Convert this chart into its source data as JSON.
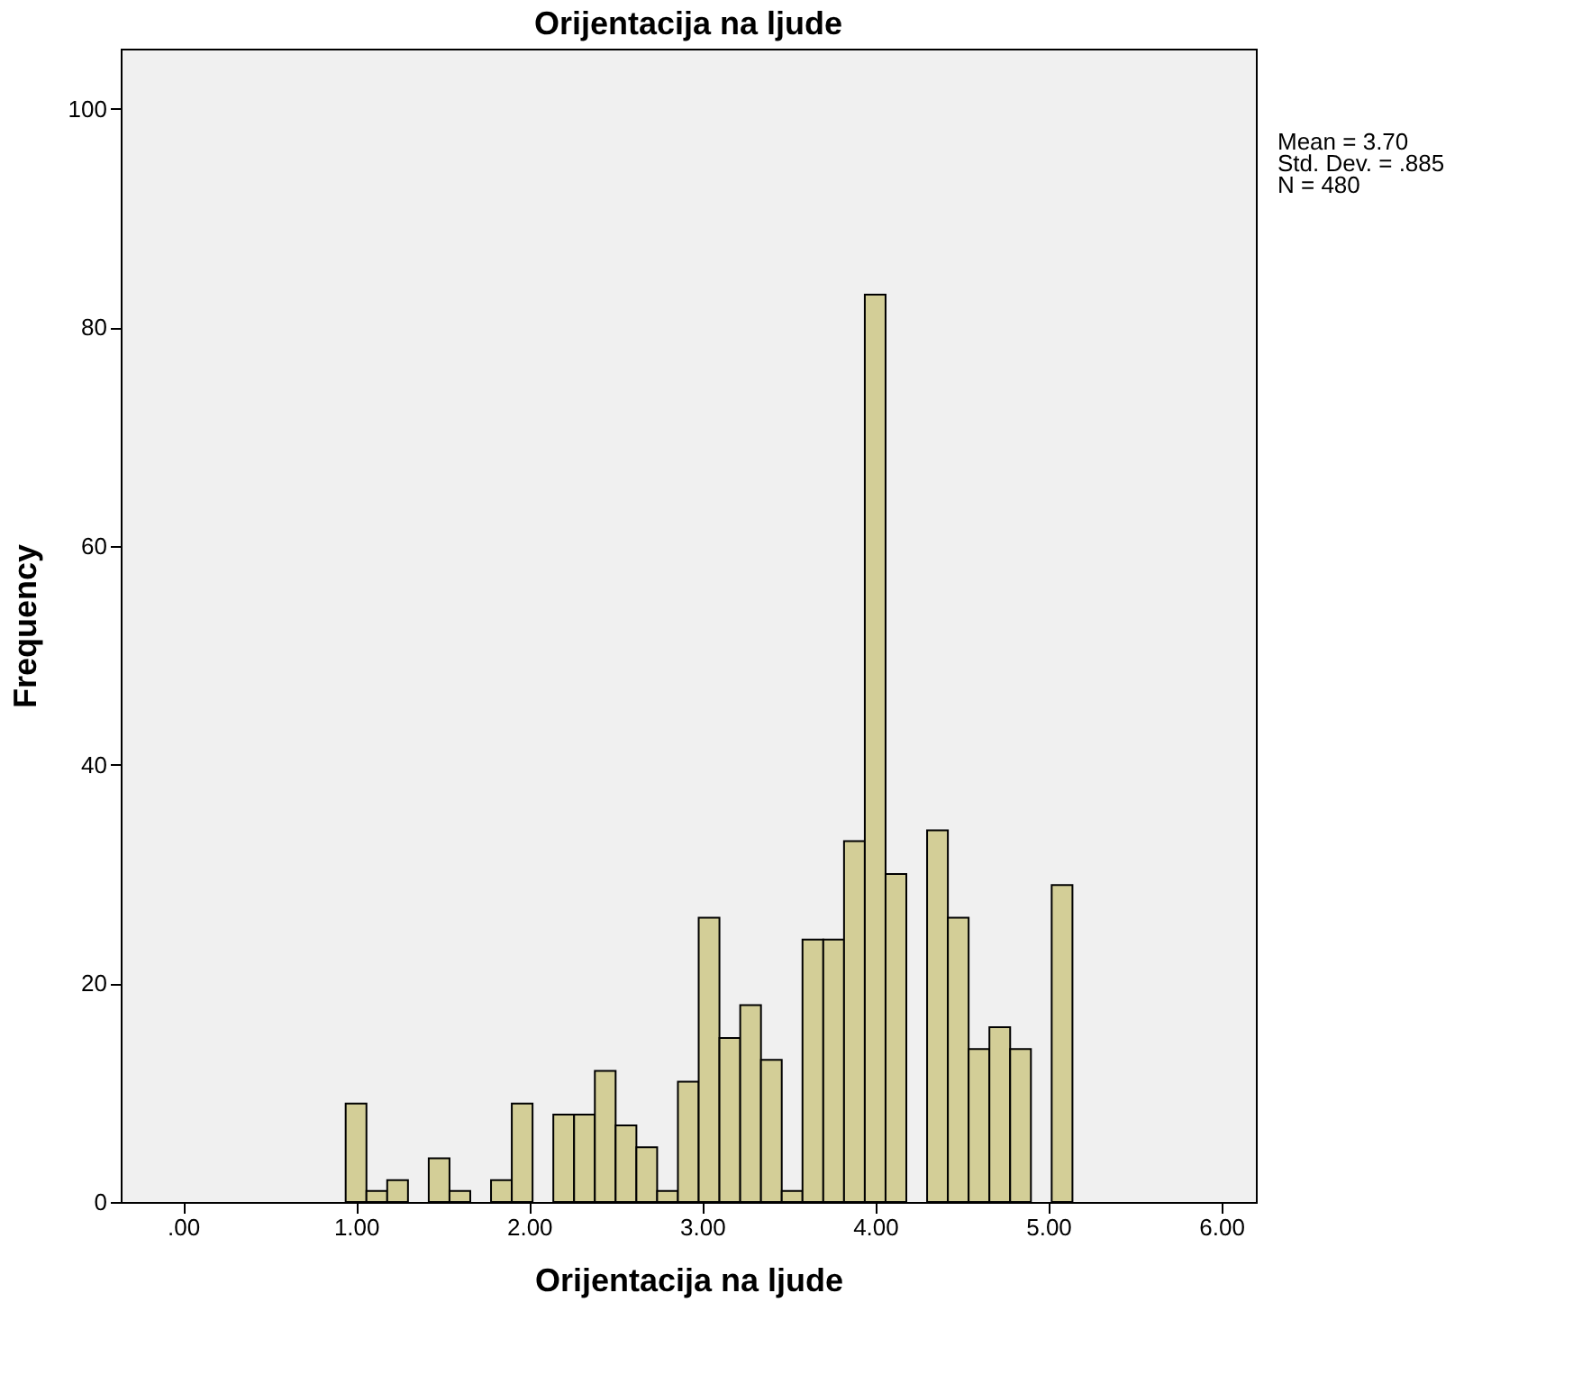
{
  "chart_data": {
    "type": "histogram",
    "title": "Orijentacija na ljude",
    "xlabel": "Orijentacija na ljude",
    "ylabel": "Frequency",
    "bins": [
      0.94,
      1.06,
      1.18,
      1.3,
      1.42,
      1.54,
      1.66,
      1.78,
      1.9,
      2.02,
      2.14,
      2.26,
      2.38,
      2.5,
      2.62,
      2.74,
      2.86,
      2.98,
      3.1,
      3.22,
      3.34,
      3.46,
      3.58,
      3.7,
      3.82,
      3.94,
      4.06,
      4.18,
      4.3,
      4.42,
      4.54,
      4.66,
      4.78,
      4.9,
      5.02,
      5.14
    ],
    "values": [
      9,
      1,
      2,
      0,
      4,
      1,
      0,
      2,
      9,
      0,
      8,
      8,
      12,
      7,
      5,
      1,
      11,
      26,
      15,
      18,
      13,
      1,
      24,
      24,
      33,
      83,
      30,
      0,
      34,
      26,
      14,
      16,
      14,
      0,
      29
    ],
    "color": "#d3ce97",
    "xlim": [
      -0.36,
      6.2
    ],
    "ylim": [
      0,
      105.5
    ],
    "xticks": [
      {
        "value": 0,
        "label": ".00"
      },
      {
        "value": 1,
        "label": "1.00"
      },
      {
        "value": 2,
        "label": "2.00"
      },
      {
        "value": 3,
        "label": "3.00"
      },
      {
        "value": 4,
        "label": "4.00"
      },
      {
        "value": 5,
        "label": "5.00"
      },
      {
        "value": 6,
        "label": "6.00"
      }
    ],
    "yticks": [
      0,
      20,
      40,
      60,
      80,
      100
    ],
    "grid": false,
    "annotations": [
      "Mean = 3.70",
      "Std. Dev. = .885",
      "N = 480"
    ]
  }
}
